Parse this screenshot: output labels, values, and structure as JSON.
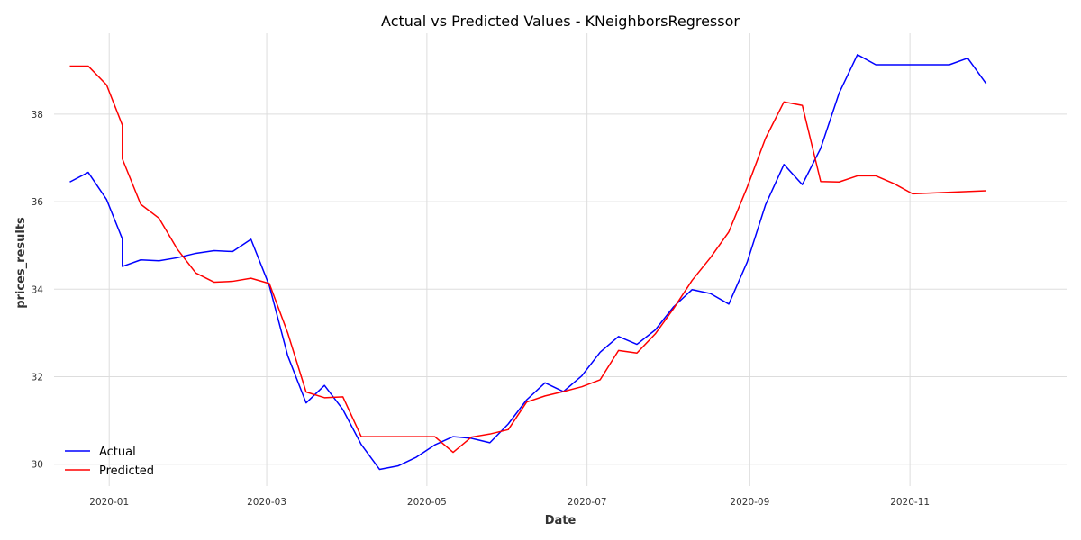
{
  "chart_data": {
    "type": "line",
    "title": "Actual vs Predicted Values - KNeighborsRegressor",
    "xlabel": "Date",
    "ylabel": "prices_results",
    "xlim": [
      "2019-12-11",
      "2020-12-31"
    ],
    "ylim": [
      29.5,
      39.85
    ],
    "x_ticks": [
      "2020-01-01",
      "2020-03-01",
      "2020-05-01",
      "2020-07-01",
      "2020-09-01",
      "2020-11-01"
    ],
    "x_tick_labels": [
      "2020-01",
      "2020-03",
      "2020-05",
      "2020-07",
      "2020-09",
      "2020-11"
    ],
    "y_ticks": [
      30,
      32,
      34,
      36,
      38
    ],
    "grid": true,
    "legend_position": "bottom-left",
    "series": [
      {
        "name": "Actual",
        "color": "#0000ff",
        "points": [
          [
            "2019-12-17",
            36.45
          ],
          [
            "2019-12-24",
            36.67
          ],
          [
            "2019-12-31",
            36.05
          ],
          [
            "2020-01-06",
            35.15
          ],
          [
            "2020-01-06",
            34.52
          ],
          [
            "2020-01-13",
            34.67
          ],
          [
            "2020-01-20",
            34.65
          ],
          [
            "2020-01-27",
            34.72
          ],
          [
            "2020-02-03",
            34.82
          ],
          [
            "2020-02-10",
            34.88
          ],
          [
            "2020-02-17",
            34.86
          ],
          [
            "2020-02-24",
            35.14
          ],
          [
            "2020-03-02",
            34.08
          ],
          [
            "2020-03-09",
            32.48
          ],
          [
            "2020-03-16",
            31.4
          ],
          [
            "2020-03-23",
            31.8
          ],
          [
            "2020-03-30",
            31.25
          ],
          [
            "2020-04-06",
            30.45
          ],
          [
            "2020-04-13",
            29.88
          ],
          [
            "2020-04-20",
            29.96
          ],
          [
            "2020-04-27",
            30.16
          ],
          [
            "2020-05-04",
            30.44
          ],
          [
            "2020-05-11",
            30.63
          ],
          [
            "2020-05-18",
            30.59
          ],
          [
            "2020-05-25",
            30.49
          ],
          [
            "2020-06-01",
            30.92
          ],
          [
            "2020-06-08",
            31.47
          ],
          [
            "2020-06-15",
            31.86
          ],
          [
            "2020-06-22",
            31.66
          ],
          [
            "2020-06-29",
            32.02
          ],
          [
            "2020-07-06",
            32.56
          ],
          [
            "2020-07-13",
            32.92
          ],
          [
            "2020-07-20",
            32.74
          ],
          [
            "2020-07-27",
            33.07
          ],
          [
            "2020-08-03",
            33.6
          ],
          [
            "2020-08-10",
            33.99
          ],
          [
            "2020-08-17",
            33.9
          ],
          [
            "2020-08-24",
            33.66
          ],
          [
            "2020-08-31",
            34.62
          ],
          [
            "2020-09-07",
            35.93
          ],
          [
            "2020-09-14",
            36.85
          ],
          [
            "2020-09-21",
            36.39
          ],
          [
            "2020-09-28",
            37.22
          ],
          [
            "2020-10-05",
            38.48
          ],
          [
            "2020-10-12",
            39.36
          ],
          [
            "2020-10-19",
            39.13
          ],
          [
            "2020-10-26",
            39.13
          ],
          [
            "2020-11-02",
            39.13
          ],
          [
            "2020-11-09",
            39.13
          ],
          [
            "2020-11-16",
            39.13
          ],
          [
            "2020-11-23",
            39.28
          ],
          [
            "2020-11-30",
            38.7
          ]
        ]
      },
      {
        "name": "Predicted",
        "color": "#ff0000",
        "points": [
          [
            "2019-12-17",
            39.1
          ],
          [
            "2019-12-24",
            39.1
          ],
          [
            "2019-12-31",
            38.67
          ],
          [
            "2020-01-06",
            37.75
          ],
          [
            "2020-01-06",
            36.98
          ],
          [
            "2020-01-13",
            35.94
          ],
          [
            "2020-01-20",
            35.62
          ],
          [
            "2020-01-27",
            34.91
          ],
          [
            "2020-02-03",
            34.37
          ],
          [
            "2020-02-10",
            34.16
          ],
          [
            "2020-02-17",
            34.18
          ],
          [
            "2020-02-24",
            34.25
          ],
          [
            "2020-03-02",
            34.13
          ],
          [
            "2020-03-09",
            33.0
          ],
          [
            "2020-03-16",
            31.65
          ],
          [
            "2020-03-23",
            31.52
          ],
          [
            "2020-03-30",
            31.54
          ],
          [
            "2020-04-06",
            30.63
          ],
          [
            "2020-04-13",
            30.63
          ],
          [
            "2020-04-20",
            30.63
          ],
          [
            "2020-04-27",
            30.63
          ],
          [
            "2020-05-04",
            30.63
          ],
          [
            "2020-05-11",
            30.27
          ],
          [
            "2020-05-18",
            30.62
          ],
          [
            "2020-05-25",
            30.69
          ],
          [
            "2020-06-01",
            30.79
          ],
          [
            "2020-06-08",
            31.42
          ],
          [
            "2020-06-15",
            31.56
          ],
          [
            "2020-06-22",
            31.66
          ],
          [
            "2020-06-29",
            31.77
          ],
          [
            "2020-07-06",
            31.93
          ],
          [
            "2020-07-13",
            32.6
          ],
          [
            "2020-07-20",
            32.54
          ],
          [
            "2020-07-27",
            32.98
          ],
          [
            "2020-08-03",
            33.56
          ],
          [
            "2020-08-10",
            34.2
          ],
          [
            "2020-08-17",
            34.72
          ],
          [
            "2020-08-24",
            35.31
          ],
          [
            "2020-08-31",
            36.33
          ],
          [
            "2020-09-07",
            37.45
          ],
          [
            "2020-09-14",
            38.28
          ],
          [
            "2020-09-21",
            38.2
          ],
          [
            "2020-09-28",
            36.46
          ],
          [
            "2020-10-05",
            36.45
          ],
          [
            "2020-10-12",
            36.59
          ],
          [
            "2020-10-19",
            36.59
          ],
          [
            "2020-10-26",
            36.41
          ],
          [
            "2020-11-02",
            36.18
          ],
          [
            "2020-11-30",
            36.25
          ]
        ]
      }
    ]
  }
}
